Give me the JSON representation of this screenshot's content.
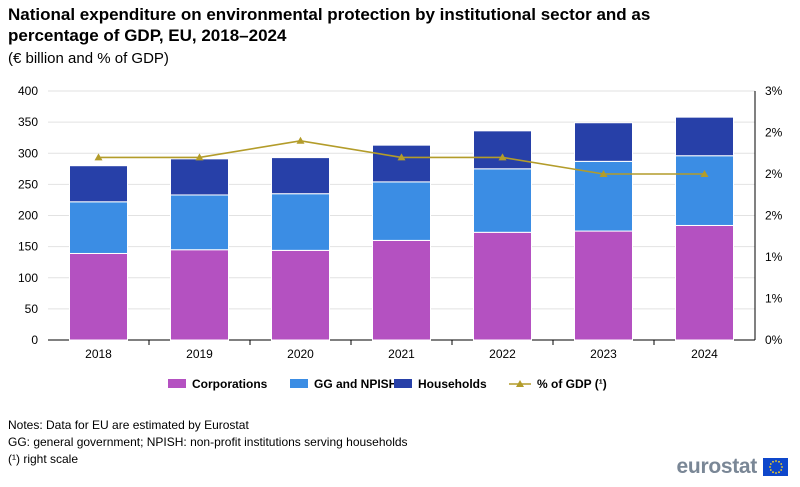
{
  "title": "National expenditure on environmental protection by institutional sector and as percentage of GDP, EU, 2018–2024",
  "subtitle": "(€ billion and % of GDP)",
  "notes": [
    "Notes: Data for EU are estimated by Eurostat",
    "GG: general government; NPISH: non-profit institutions serving households",
    "(¹) right scale"
  ],
  "logo": {
    "text": "eurostat",
    "icon": "eu-flag-icon"
  },
  "colors": {
    "corporations": "#b451c1",
    "gg_npish": "#3b8de4",
    "households": "#2740a8",
    "gdp_line": "#b39c2a"
  },
  "chart_data": {
    "type": "bar",
    "stacked": true,
    "categories": [
      "2018",
      "2019",
      "2020",
      "2021",
      "2022",
      "2023",
      "2024"
    ],
    "series": [
      {
        "name": "Corporations",
        "key": "corporations",
        "values": [
          139,
          145,
          144,
          160,
          173,
          175,
          184
        ]
      },
      {
        "name": "GG and NPISH",
        "key": "gg_npish",
        "values": [
          83,
          88,
          91,
          94,
          102,
          112,
          112
        ]
      },
      {
        "name": "Households",
        "key": "households",
        "values": [
          58,
          58,
          58,
          59,
          61,
          62,
          62
        ]
      }
    ],
    "line_series": {
      "name": "% of GDP (¹)",
      "key": "gdp_line",
      "axis": "right",
      "values": [
        2.2,
        2.2,
        2.4,
        2.2,
        2.2,
        2.0,
        2.0
      ]
    },
    "y_left": {
      "min": 0,
      "max": 400,
      "ticks": [
        "0",
        "50",
        "100",
        "150",
        "200",
        "250",
        "300",
        "350",
        "400"
      ]
    },
    "y_right": {
      "min": 0,
      "max": 3,
      "ticks": [
        "0%",
        "1%",
        "1%",
        "2%",
        "2%",
        "2%",
        "3%"
      ]
    },
    "legend_position": "bottom",
    "grid": true
  }
}
